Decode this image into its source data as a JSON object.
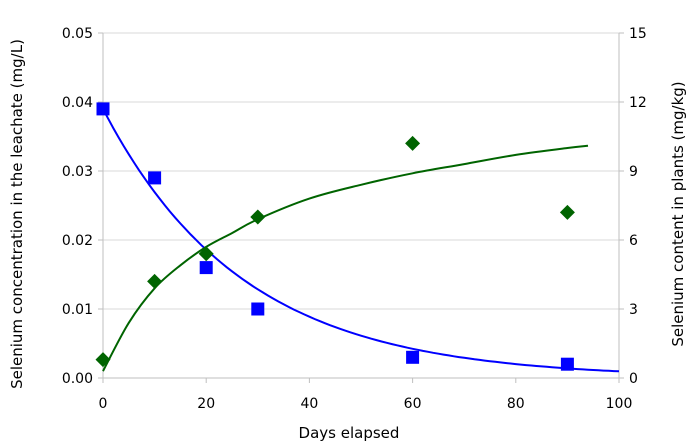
{
  "chart_data": {
    "type": "scatter",
    "xlabel": "Days elapsed",
    "ylabel_left": "Selenium concentration in the leachate (mg/L)",
    "ylabel_right": "Selenium content in plants (mg/kg)",
    "xlim": [
      0,
      100
    ],
    "xticks": [
      "0",
      "20",
      "40",
      "60",
      "80",
      "100"
    ],
    "ylim_left": [
      0,
      0.05
    ],
    "yticks_left": [
      "0.00",
      "0.01",
      "0.02",
      "0.03",
      "0.04",
      "0.05"
    ],
    "ylim_right": [
      0,
      15
    ],
    "yticks_right": [
      "0",
      "3",
      "6",
      "9",
      "12",
      "15"
    ],
    "grid": "horizontal",
    "series": [
      {
        "axis": "left",
        "marker": "square",
        "color": "#0000ff",
        "x": [
          0,
          10,
          20,
          30,
          60,
          90
        ],
        "y": [
          0.039,
          0.029,
          0.016,
          0.01,
          0.003,
          0.002
        ],
        "fit": {
          "kind": "exponential-decay",
          "x_range": [
            0,
            100
          ],
          "a": 0.039,
          "k": 0.037
        }
      },
      {
        "axis": "right",
        "marker": "diamond",
        "color": "#006400",
        "x": [
          0,
          10,
          20,
          30,
          60,
          90
        ],
        "y": [
          0.8,
          4.2,
          5.4,
          7.0,
          10.2,
          7.2
        ],
        "fit": {
          "kind": "saturation",
          "x_range": [
            0,
            94
          ],
          "points": [
            [
              0,
              0.3
            ],
            [
              5,
              2.4
            ],
            [
              10,
              3.9
            ],
            [
              15,
              4.9
            ],
            [
              20,
              5.7
            ],
            [
              25,
              6.3
            ],
            [
              30,
              6.9
            ],
            [
              40,
              7.8
            ],
            [
              50,
              8.4
            ],
            [
              60,
              8.9
            ],
            [
              70,
              9.3
            ],
            [
              80,
              9.7
            ],
            [
              90,
              10.0
            ],
            [
              94,
              10.1
            ]
          ]
        }
      }
    ]
  }
}
